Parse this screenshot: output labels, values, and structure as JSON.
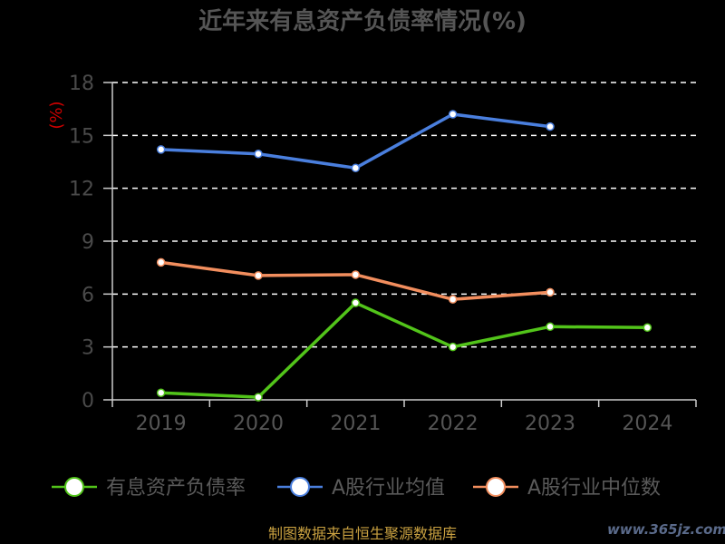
{
  "chart_data": {
    "type": "line",
    "title": "近年来有息资产负债率情况(%)",
    "ylabel": "(%)",
    "categories": [
      "2019",
      "2020",
      "2021",
      "2022",
      "2023",
      "2024"
    ],
    "ylim": [
      0,
      18
    ],
    "yticks": [
      0,
      3,
      6,
      9,
      12,
      15,
      18
    ],
    "grid": true,
    "legend_position": "bottom",
    "series": [
      {
        "name": "有息资产负债率",
        "color": "#52c41a",
        "values": [
          0.4,
          0.15,
          5.5,
          3.0,
          4.15,
          4.1
        ]
      },
      {
        "name": "A股行业均值",
        "color": "#4a7fde",
        "values": [
          14.2,
          13.95,
          13.15,
          16.2,
          15.5,
          null
        ]
      },
      {
        "name": "A股行业中位数",
        "color": "#f28e5e",
        "values": [
          7.8,
          7.05,
          7.1,
          5.7,
          6.1,
          null
        ]
      }
    ]
  },
  "footer": {
    "source": "制图数据来自恒生聚源数据库",
    "watermark": "www.365jz.com"
  }
}
